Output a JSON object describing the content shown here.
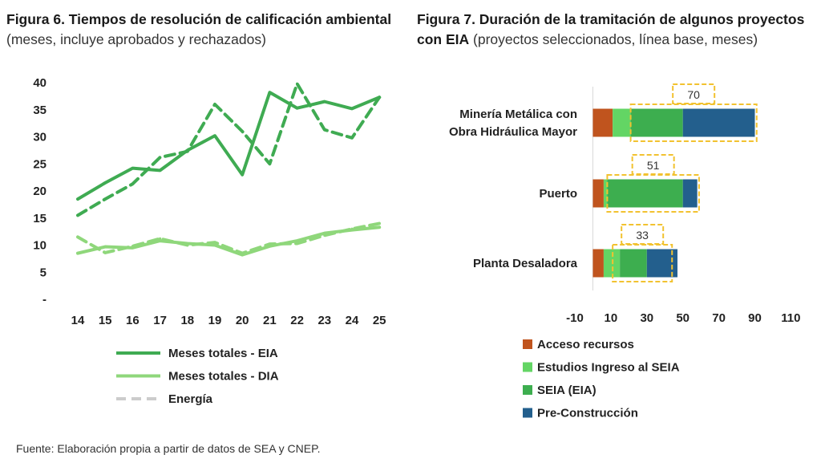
{
  "source": "Fuente: Elaboración propia a partir de datos de SEA y CNEP.",
  "colors": {
    "eia": "#3fab52",
    "dia": "#8fd77b",
    "energia": "#cccccc",
    "acceso": "#c0541e",
    "estudios": "#63d564",
    "seia": "#3dae4f",
    "precons": "#235f8d",
    "highlight": "#f2c230"
  },
  "chart_data": [
    {
      "type": "line",
      "title": "Figura 6. Tiempos de resolución de calificación ambiental",
      "subtitle": "(meses, incluye aprobados y rechazados)",
      "x": [
        "14",
        "15",
        "16",
        "17",
        "18",
        "19",
        "20",
        "21",
        "22",
        "23",
        "24",
        "25"
      ],
      "ylim": [
        0,
        40
      ],
      "yticks": [
        "-",
        "5",
        "10",
        "15",
        "20",
        "25",
        "30",
        "35",
        "40"
      ],
      "series": [
        {
          "name": "Meses totales - EIA",
          "key": "eia",
          "dash": false,
          "values": [
            18.5,
            21.5,
            24.2,
            23.8,
            27.5,
            30.2,
            23.0,
            38.2,
            35.3,
            36.5,
            35.2,
            37.3
          ]
        },
        {
          "name": "Meses totales - DIA",
          "key": "dia",
          "dash": false,
          "values": [
            8.5,
            9.7,
            9.5,
            10.8,
            10.3,
            10.0,
            8.2,
            9.8,
            10.8,
            12.2,
            12.8,
            13.3
          ]
        },
        {
          "name": null,
          "key": "eia",
          "dash": true,
          "values": [
            15.5,
            18.5,
            21.3,
            26.2,
            27.3,
            36.0,
            31.0,
            25.0,
            39.8,
            31.3,
            29.8,
            37.3
          ]
        },
        {
          "name": null,
          "key": "dia",
          "dash": true,
          "values": [
            11.5,
            8.6,
            9.8,
            11.2,
            10.0,
            10.5,
            8.5,
            10.2,
            10.3,
            11.8,
            13.0,
            14.0
          ]
        }
      ],
      "legend": [
        {
          "label": "Meses totales - EIA",
          "key": "eia",
          "dash": false
        },
        {
          "label": "Meses totales - DIA",
          "key": "dia",
          "dash": false
        },
        {
          "label": "Energía",
          "key": "energia",
          "dash": true
        }
      ]
    },
    {
      "type": "bar",
      "orientation": "horizontal",
      "stacked": true,
      "title": "Figura 7. Duración de la tramitación de algunos proyectos con EIA",
      "subtitle": "(proyectos seleccionados, línea base, meses)",
      "categories": [
        [
          "Minería Metálica con",
          "Obra Hidráulica Mayor"
        ],
        [
          "Puerto"
        ],
        [
          "Planta Desaladora"
        ]
      ],
      "xlim": [
        -10,
        110
      ],
      "xticks": [
        "-10",
        "10",
        "30",
        "50",
        "70",
        "90",
        "110"
      ],
      "series": [
        {
          "name": "Acceso recursos",
          "key": "acceso",
          "values": [
            11,
            6,
            6
          ]
        },
        {
          "name": "Estudios Ingreso al SEIA",
          "key": "estudios",
          "values": [
            10,
            2,
            9
          ]
        },
        {
          "name": "SEIA (EIA)",
          "key": "seia",
          "values": [
            29,
            42,
            15
          ]
        },
        {
          "name": "Pre-Construcción",
          "key": "precons",
          "values": [
            40,
            8,
            17
          ]
        }
      ],
      "highlights": [
        {
          "label": "70",
          "from": 21,
          "to": 91
        },
        {
          "label": "51",
          "from": 8,
          "to": 59
        },
        {
          "label": "33",
          "from": 11,
          "to": 44
        }
      ]
    }
  ]
}
